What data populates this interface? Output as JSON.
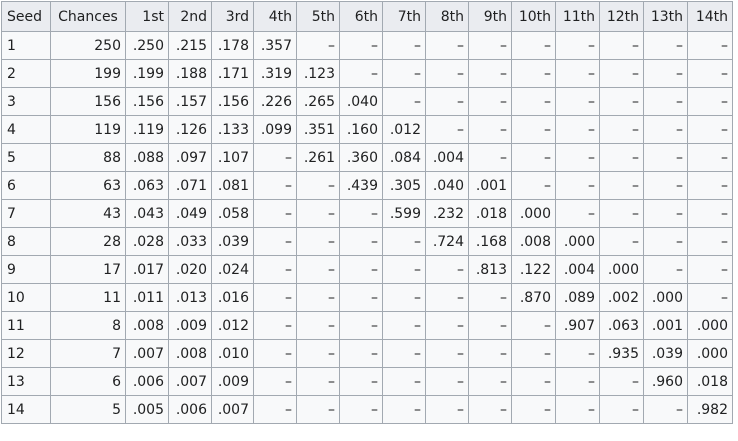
{
  "table": {
    "headers": [
      "Seed",
      "Chances",
      "1st",
      "2nd",
      "3rd",
      "4th",
      "5th",
      "6th",
      "7th",
      "8th",
      "9th",
      "10th",
      "11th",
      "12th",
      "13th",
      "14th"
    ],
    "rows": [
      [
        "1",
        "250",
        ".250",
        ".215",
        ".178",
        ".357",
        "–",
        "–",
        "–",
        "–",
        "–",
        "–",
        "–",
        "–",
        "–",
        "–"
      ],
      [
        "2",
        "199",
        ".199",
        ".188",
        ".171",
        ".319",
        ".123",
        "–",
        "–",
        "–",
        "–",
        "–",
        "–",
        "–",
        "–",
        "–"
      ],
      [
        "3",
        "156",
        ".156",
        ".157",
        ".156",
        ".226",
        ".265",
        ".040",
        "–",
        "–",
        "–",
        "–",
        "–",
        "–",
        "–",
        "–"
      ],
      [
        "4",
        "119",
        ".119",
        ".126",
        ".133",
        ".099",
        ".351",
        ".160",
        ".012",
        "–",
        "–",
        "–",
        "–",
        "–",
        "–",
        "–"
      ],
      [
        "5",
        "88",
        ".088",
        ".097",
        ".107",
        "–",
        ".261",
        ".360",
        ".084",
        ".004",
        "–",
        "–",
        "–",
        "–",
        "–",
        "–"
      ],
      [
        "6",
        "63",
        ".063",
        ".071",
        ".081",
        "–",
        "–",
        ".439",
        ".305",
        ".040",
        ".001",
        "–",
        "–",
        "–",
        "–",
        "–"
      ],
      [
        "7",
        "43",
        ".043",
        ".049",
        ".058",
        "–",
        "–",
        "–",
        ".599",
        ".232",
        ".018",
        ".000",
        "–",
        "–",
        "–",
        "–"
      ],
      [
        "8",
        "28",
        ".028",
        ".033",
        ".039",
        "–",
        "–",
        "–",
        "–",
        ".724",
        ".168",
        ".008",
        ".000",
        "–",
        "–",
        "–"
      ],
      [
        "9",
        "17",
        ".017",
        ".020",
        ".024",
        "–",
        "–",
        "–",
        "–",
        "–",
        ".813",
        ".122",
        ".004",
        ".000",
        "–",
        "–"
      ],
      [
        "10",
        "11",
        ".011",
        ".013",
        ".016",
        "–",
        "–",
        "–",
        "–",
        "–",
        "–",
        ".870",
        ".089",
        ".002",
        ".000",
        "–"
      ],
      [
        "11",
        "8",
        ".008",
        ".009",
        ".012",
        "–",
        "–",
        "–",
        "–",
        "–",
        "–",
        "–",
        ".907",
        ".063",
        ".001",
        ".000"
      ],
      [
        "12",
        "7",
        ".007",
        ".008",
        ".010",
        "–",
        "–",
        "–",
        "–",
        "–",
        "–",
        "–",
        "–",
        ".935",
        ".039",
        ".000"
      ],
      [
        "13",
        "6",
        ".006",
        ".007",
        ".009",
        "–",
        "–",
        "–",
        "–",
        "–",
        "–",
        "–",
        "–",
        "–",
        ".960",
        ".018"
      ],
      [
        "14",
        "5",
        ".005",
        ".006",
        ".007",
        "–",
        "–",
        "–",
        "–",
        "–",
        "–",
        "–",
        "–",
        "–",
        "–",
        ".982"
      ]
    ]
  }
}
